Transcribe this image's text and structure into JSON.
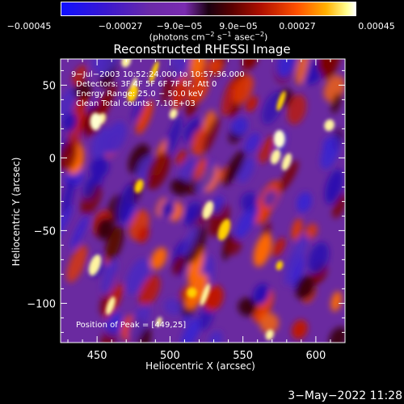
{
  "colorbar": {
    "ticks": [
      "−0.00045",
      "−0.00027",
      "−9.0e−05",
      "9.0e−05",
      "0.00027",
      "0.00045"
    ],
    "units_prefix": "(photons cm",
    "units_exp1": "−2",
    "units_mid": " s",
    "units_exp2": "−1",
    "units_mid2": " asec",
    "units_exp3": "−2",
    "units_suffix": ")"
  },
  "chart_data": {
    "type": "heatmap",
    "title": "Reconstructed RHESSI Image",
    "xlabel": "Heliocentric X (arcsec)",
    "ylabel": "Heliocentric Y (arcsec)",
    "xlim": [
      425,
      620
    ],
    "ylim": [
      -127,
      68
    ],
    "x_ticks": [
      450,
      500,
      550,
      600
    ],
    "y_ticks": [
      50,
      0,
      -50,
      -100
    ],
    "x_tick_labels": [
      "450",
      "500",
      "550",
      "600"
    ],
    "y_tick_labels": [
      "50",
      "0",
      "−50",
      "−100"
    ],
    "color_range": [
      -0.00045,
      0.00045
    ],
    "peak": [
      449,
      25
    ],
    "annotations": {
      "time": "9−Jul−2003 10:52:24.000 to 10:57:36.000",
      "detectors": "Detectors: 3F 4F 5F 6F 7F 8F, Att 0",
      "energy": "Energy Range: 25.0 − 50.0 keV",
      "clean": "Clean     Total counts: 7.10E+03",
      "peak": "Position of Peak = [449,25]"
    }
  },
  "footer": {
    "timestamp": "3−May−2022 11:28"
  }
}
